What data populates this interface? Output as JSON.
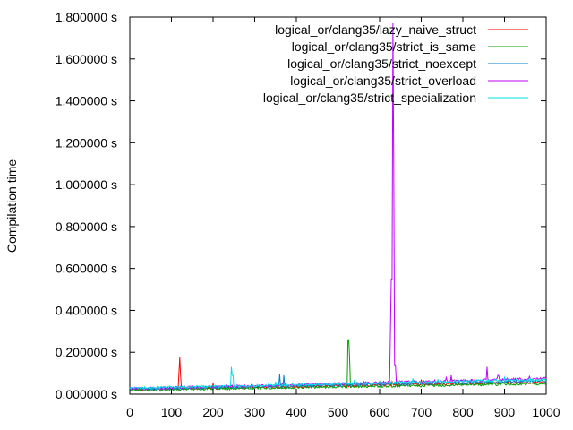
{
  "chart_data": {
    "type": "line",
    "ylabel": "Compilation time",
    "xlabel": "",
    "xlim": [
      0,
      1000
    ],
    "ylim": [
      0,
      1.8
    ],
    "grid": false,
    "legend_position": "top-right",
    "x_ticks": [
      0,
      100,
      200,
      300,
      400,
      500,
      600,
      700,
      800,
      900,
      1000
    ],
    "x_tick_labels": [
      "0",
      "100",
      "200",
      "300",
      "400",
      "500",
      "600",
      "700",
      "800",
      "900",
      "1000"
    ],
    "y_ticks": [
      0,
      0.2,
      0.4,
      0.6,
      0.8,
      1.0,
      1.2,
      1.4,
      1.6,
      1.8
    ],
    "y_tick_labels": [
      "0.000000 s",
      "0.200000 s",
      "0.400000 s",
      "0.600000 s",
      "0.800000 s",
      "1.000000 s",
      "1.200000 s",
      "1.400000 s",
      "1.600000 s",
      "1.800000 s"
    ],
    "series": [
      {
        "name": "logical_or/clang35/lazy_naive_struct",
        "color": "#ff0000",
        "baseline_start": 0.022,
        "baseline_end": 0.058,
        "spikes": [
          [
            118,
            0.1
          ],
          [
            120,
            0.175
          ],
          [
            122,
            0.09
          ],
          [
            200,
            0.055
          ],
          [
            630,
            0.06
          ],
          [
            700,
            0.07
          ],
          [
            780,
            0.07
          ]
        ]
      },
      {
        "name": "logical_or/clang35/strict_is_same",
        "color": "#00a000",
        "baseline_start": 0.02,
        "baseline_end": 0.05,
        "spikes": [
          [
            525,
            0.26
          ],
          [
            528,
            0.17
          ],
          [
            640,
            0.06
          ],
          [
            860,
            0.06
          ]
        ]
      },
      {
        "name": "logical_or/clang35/strict_noexcept",
        "color": "#0080c0",
        "baseline_start": 0.024,
        "baseline_end": 0.062,
        "spikes": [
          [
            360,
            0.095
          ],
          [
            370,
            0.09
          ],
          [
            450,
            0.05
          ],
          [
            600,
            0.06
          ],
          [
            820,
            0.07
          ],
          [
            950,
            0.07
          ]
        ]
      },
      {
        "name": "logical_or/clang35/strict_overload",
        "color": "#c000ff",
        "baseline_start": 0.026,
        "baseline_end": 0.075,
        "spikes": [
          [
            627,
            0.3
          ],
          [
            629,
            0.55
          ],
          [
            632,
            1.77
          ],
          [
            635,
            1.07
          ],
          [
            637,
            0.14
          ],
          [
            760,
            0.08
          ],
          [
            772,
            0.09
          ],
          [
            858,
            0.13
          ],
          [
            885,
            0.09
          ],
          [
            960,
            0.085
          ]
        ]
      },
      {
        "name": "logical_or/clang35/strict_specialization",
        "color": "#00e0e0",
        "baseline_start": 0.028,
        "baseline_end": 0.07,
        "spikes": [
          [
            245,
            0.13
          ],
          [
            247,
            0.09
          ],
          [
            350,
            0.06
          ],
          [
            540,
            0.07
          ],
          [
            680,
            0.075
          ],
          [
            740,
            0.07
          ],
          [
            900,
            0.08
          ]
        ]
      }
    ]
  }
}
